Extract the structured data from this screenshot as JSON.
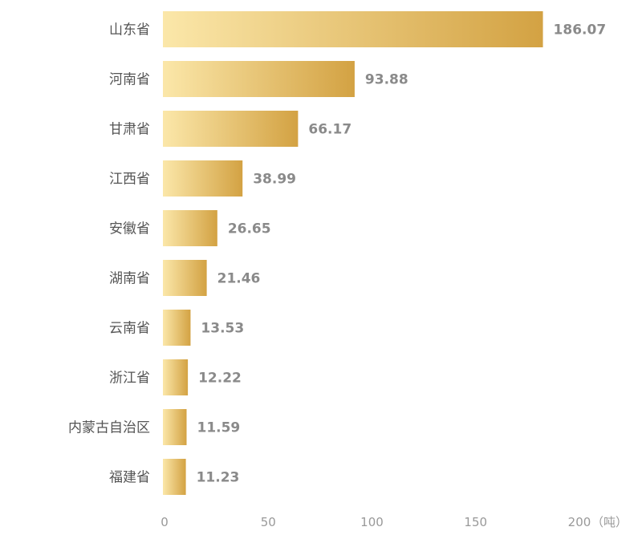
{
  "chart_data": {
    "type": "bar",
    "orientation": "horizontal",
    "categories": [
      "山东省",
      "河南省",
      "甘肃省",
      "江西省",
      "安徽省",
      "湖南省",
      "云南省",
      "浙江省",
      "内蒙古自治区",
      "福建省"
    ],
    "values": [
      186.07,
      93.88,
      66.17,
      38.99,
      26.65,
      21.46,
      13.53,
      12.22,
      11.59,
      11.23
    ],
    "value_labels": [
      "186.07",
      "93.88",
      "66.17",
      "38.99",
      "26.65",
      "21.46",
      "13.53",
      "12.22",
      "11.59",
      "11.23"
    ],
    "x_ticks": [
      "0",
      "50",
      "100",
      "150",
      "200"
    ],
    "x_tick_values": [
      0,
      50,
      100,
      150,
      200
    ],
    "xunit": "（吨）",
    "xlim": [
      0,
      200
    ],
    "grid": false,
    "colors": {
      "gradient_start": "#fbe7a9",
      "gradient_end": "#d3a243",
      "category_text": "#555555",
      "value_text": "#8a8a8a",
      "tick_text": "#999999"
    }
  }
}
